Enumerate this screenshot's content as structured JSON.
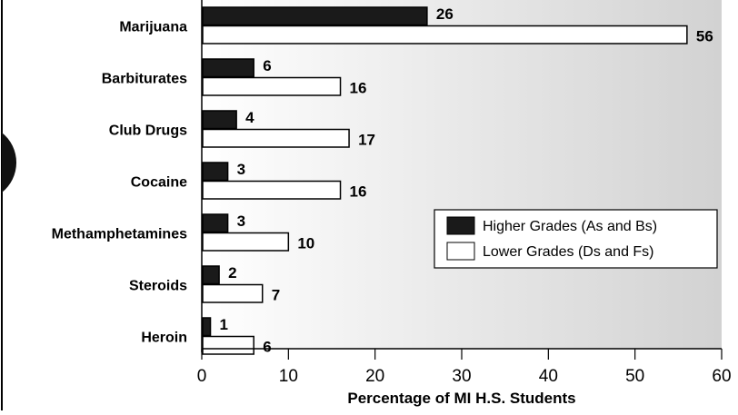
{
  "chart_data": {
    "type": "bar",
    "orientation": "horizontal",
    "categories": [
      "Marijuana",
      "Barbiturates",
      "Club Drugs",
      "Cocaine",
      "Methamphetamines",
      "Steroids",
      "Heroin"
    ],
    "series": [
      {
        "name": "Higher Grades (As and Bs)",
        "color": "#1a1a1a",
        "values": [
          26,
          6,
          4,
          3,
          3,
          2,
          1
        ]
      },
      {
        "name": "Lower Grades (Ds and Fs)",
        "color": "#ffffff",
        "values": [
          56,
          16,
          17,
          16,
          10,
          7,
          6
        ]
      }
    ],
    "xlabel": "Percentage of MI H.S. Students",
    "xlim": [
      0,
      60
    ],
    "xticks": [
      0,
      10,
      20,
      30,
      40,
      50,
      60
    ],
    "grid": false,
    "legend_position": "right",
    "background": "gradient-gray"
  }
}
